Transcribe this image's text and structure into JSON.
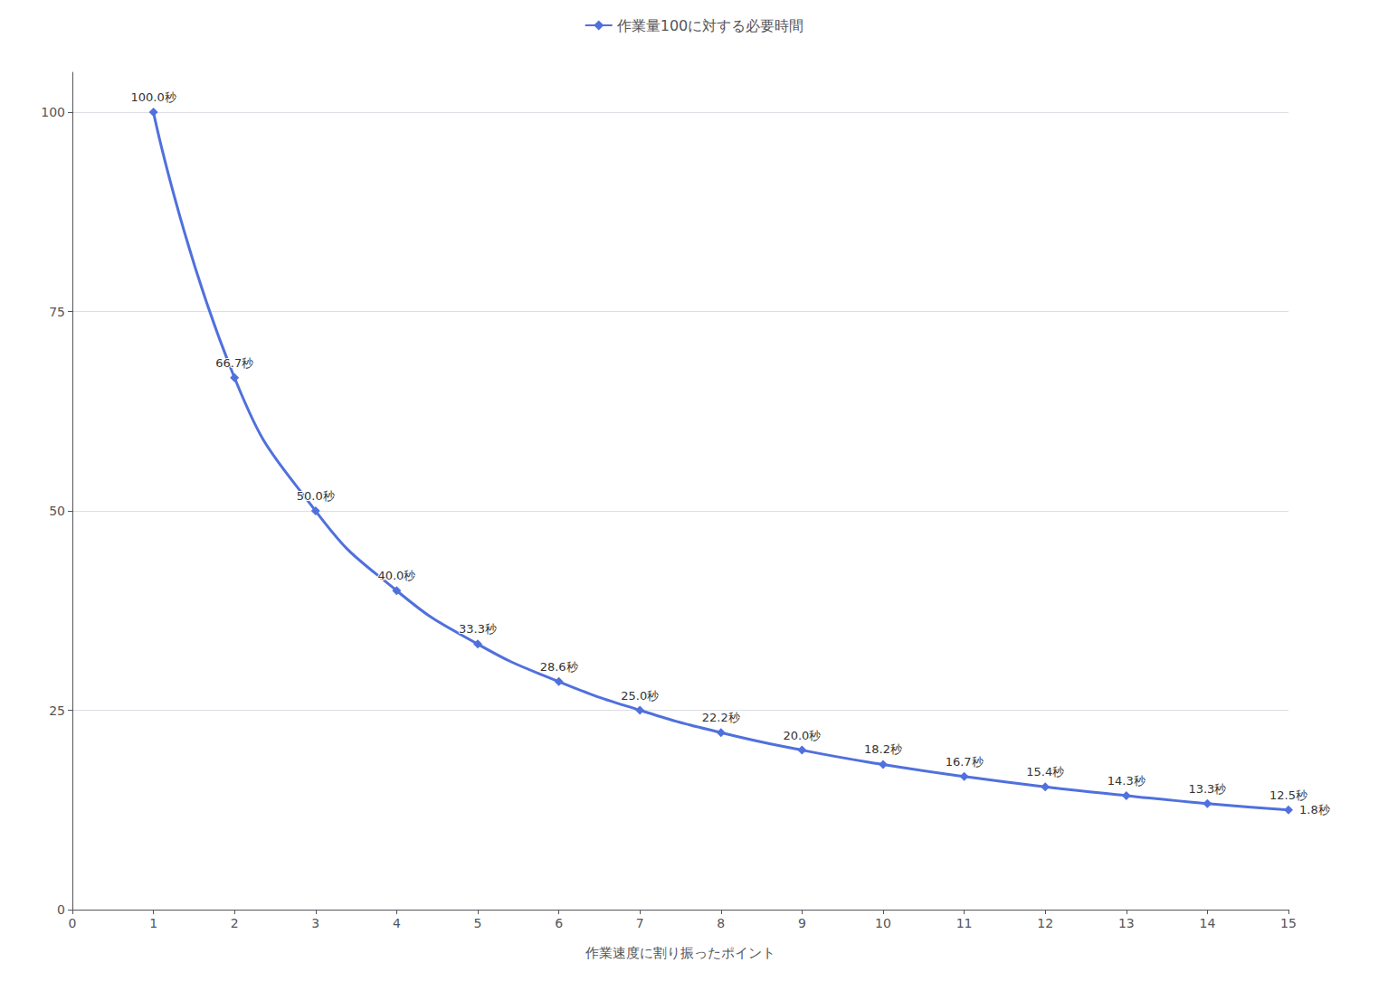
{
  "chart_data": {
    "type": "line",
    "xlabel": "作業速度に割り振ったポイント",
    "x": [
      1,
      2,
      3,
      4,
      5,
      6,
      7,
      8,
      9,
      10,
      11,
      12,
      13,
      14,
      15
    ],
    "series": [
      {
        "name": "作業量100に対する必要時間",
        "values": [
          100.0,
          66.7,
          50.0,
          40.0,
          33.3,
          28.6,
          25.0,
          22.2,
          20.0,
          18.2,
          16.7,
          15.4,
          14.3,
          13.3,
          12.5
        ],
        "value_labels": [
          "100.0秒",
          "66.7秒",
          "50.0秒",
          "40.0秒",
          "33.3秒",
          "28.6秒",
          "25.0秒",
          "22.2秒",
          "20.0秒",
          "18.2秒",
          "16.7秒",
          "15.4秒",
          "14.3秒",
          "13.3秒",
          "12.5秒"
        ],
        "marker": "diamond"
      }
    ],
    "annotations": [
      {
        "text": "1.8秒",
        "x": 15,
        "y": 12.5
      }
    ],
    "data_labels": true,
    "legend": "top",
    "grid": true,
    "xlim": [
      0,
      15
    ],
    "xticks": [
      0,
      1,
      2,
      3,
      4,
      5,
      6,
      7,
      8,
      9,
      10,
      11,
      12,
      13,
      14,
      15
    ],
    "ylim": [
      0,
      105
    ],
    "yticks": [
      0,
      25,
      50,
      75,
      100
    ]
  }
}
